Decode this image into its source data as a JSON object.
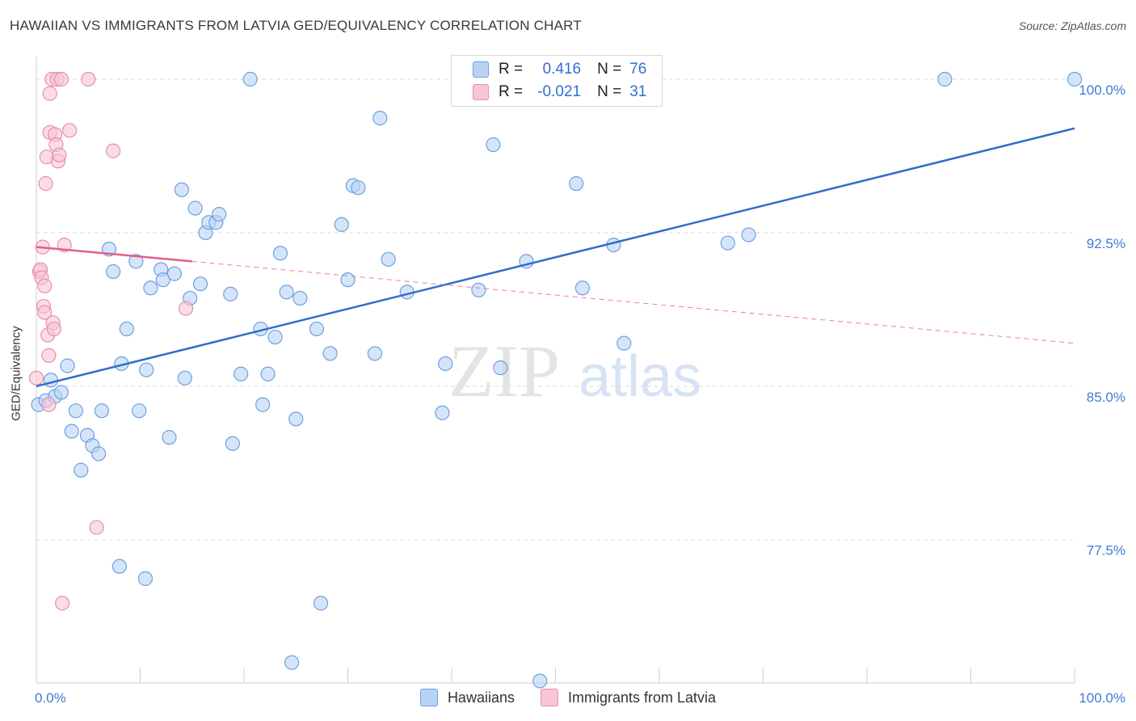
{
  "header": {
    "title": "HAWAIIAN VS IMMIGRANTS FROM LATVIA GED/EQUIVALENCY CORRELATION CHART",
    "source": "Source: ZipAtlas.com"
  },
  "watermark": {
    "zip": "ZIP",
    "atlas": "atlas"
  },
  "legend": {
    "r_label": "R =",
    "n_label": "N =",
    "series": [
      {
        "name": "Hawaiians",
        "r": "0.416",
        "n": "76",
        "fill": "#b9d3f5",
        "stroke": "#6f9fdf"
      },
      {
        "name": "Immigrants from Latvia",
        "r": "-0.021",
        "n": "31",
        "fill": "#f9c4d3",
        "stroke": "#e68fab"
      }
    ]
  },
  "chart_data": {
    "type": "scatter",
    "title": "HAWAIIAN VS IMMIGRANTS FROM LATVIA GED/EQUIVALENCY CORRELATION CHART",
    "xlabel": "",
    "ylabel": "GED/Equivalency",
    "xlim": [
      0,
      100
    ],
    "ylim": [
      70.5,
      101.5
    ],
    "x_tick_labels": [
      "0.0%",
      "100.0%"
    ],
    "y_ticks": [
      77.5,
      85.0,
      92.5,
      100.0
    ],
    "y_tick_labels": [
      "77.5%",
      "85.0%",
      "92.5%",
      "100.0%"
    ],
    "grid": true,
    "series": [
      {
        "name": "Hawaiians",
        "color": "#6f9fdf",
        "fill": "#b9d3f5",
        "line_color": "#2f6fcc",
        "trend": {
          "x0": 0,
          "y0": 85.0,
          "x1": 100,
          "y1": 97.6,
          "dashed": false
        },
        "points": [
          [
            0.2,
            84.1
          ],
          [
            0.9,
            84.3
          ],
          [
            1.4,
            85.3
          ],
          [
            1.8,
            84.5
          ],
          [
            2.4,
            84.7
          ],
          [
            3.0,
            86.0
          ],
          [
            3.4,
            82.8
          ],
          [
            3.8,
            83.8
          ],
          [
            4.3,
            80.9
          ],
          [
            4.9,
            82.6
          ],
          [
            5.4,
            82.1
          ],
          [
            6.0,
            81.7
          ],
          [
            6.3,
            83.8
          ],
          [
            7.0,
            91.7
          ],
          [
            7.4,
            90.6
          ],
          [
            8.2,
            86.1
          ],
          [
            8.7,
            87.8
          ],
          [
            9.6,
            91.1
          ],
          [
            9.9,
            83.8
          ],
          [
            10.6,
            85.8
          ],
          [
            11.0,
            89.8
          ],
          [
            12.0,
            90.7
          ],
          [
            12.2,
            90.2
          ],
          [
            12.8,
            82.5
          ],
          [
            13.3,
            90.5
          ],
          [
            14.0,
            94.6
          ],
          [
            14.3,
            85.4
          ],
          [
            14.8,
            89.3
          ],
          [
            15.3,
            93.7
          ],
          [
            15.8,
            90.0
          ],
          [
            16.3,
            92.5
          ],
          [
            16.6,
            93.0
          ],
          [
            17.3,
            93.0
          ],
          [
            17.6,
            93.4
          ],
          [
            18.7,
            89.5
          ],
          [
            18.9,
            82.2
          ],
          [
            19.7,
            85.6
          ],
          [
            20.6,
            100.0
          ],
          [
            21.6,
            87.8
          ],
          [
            21.8,
            84.1
          ],
          [
            22.3,
            85.6
          ],
          [
            23.0,
            87.4
          ],
          [
            23.5,
            91.5
          ],
          [
            24.1,
            89.6
          ],
          [
            24.6,
            71.5
          ],
          [
            25.0,
            83.4
          ],
          [
            25.4,
            89.3
          ],
          [
            27.0,
            87.8
          ],
          [
            27.4,
            74.4
          ],
          [
            28.3,
            86.6
          ],
          [
            29.4,
            92.9
          ],
          [
            30.0,
            90.2
          ],
          [
            30.5,
            94.8
          ],
          [
            31.0,
            94.7
          ],
          [
            32.6,
            86.6
          ],
          [
            33.1,
            98.1
          ],
          [
            33.9,
            91.2
          ],
          [
            35.7,
            89.6
          ],
          [
            39.1,
            83.7
          ],
          [
            39.4,
            86.1
          ],
          [
            42.6,
            89.7
          ],
          [
            44.7,
            85.9
          ],
          [
            47.2,
            91.1
          ],
          [
            48.5,
            70.6
          ],
          [
            49.2,
            100.0
          ],
          [
            52.0,
            94.9
          ],
          [
            52.6,
            89.8
          ],
          [
            55.6,
            91.9
          ],
          [
            56.6,
            87.1
          ],
          [
            66.6,
            92.0
          ],
          [
            68.6,
            92.4
          ],
          [
            87.5,
            100.0
          ],
          [
            100.0,
            100.0
          ],
          [
            8.0,
            76.2
          ],
          [
            10.5,
            75.6
          ],
          [
            44.0,
            96.8
          ]
        ]
      },
      {
        "name": "Immigrants from Latvia",
        "color": "#e68fab",
        "fill": "#f9c4d3",
        "line_color": "#e0608c",
        "trend": {
          "x0": 0,
          "y0": 91.8,
          "x1": 15,
          "y1": 91.1,
          "x_end": 100,
          "y_end": 87.1,
          "dashed_after": 15
        },
        "points": [
          [
            0.0,
            85.4
          ],
          [
            0.3,
            90.6
          ],
          [
            0.4,
            90.7
          ],
          [
            0.5,
            90.3
          ],
          [
            0.6,
            91.8
          ],
          [
            0.7,
            88.9
          ],
          [
            0.8,
            89.9
          ],
          [
            0.8,
            88.6
          ],
          [
            0.9,
            94.9
          ],
          [
            1.0,
            96.2
          ],
          [
            1.1,
            87.5
          ],
          [
            1.2,
            86.5
          ],
          [
            1.2,
            84.1
          ],
          [
            1.3,
            97.4
          ],
          [
            1.3,
            99.3
          ],
          [
            1.5,
            100.0
          ],
          [
            1.6,
            88.1
          ],
          [
            1.7,
            87.8
          ],
          [
            1.8,
            97.3
          ],
          [
            1.9,
            96.8
          ],
          [
            2.0,
            100.0
          ],
          [
            2.1,
            96.0
          ],
          [
            2.2,
            96.3
          ],
          [
            2.4,
            100.0
          ],
          [
            2.5,
            74.4
          ],
          [
            2.7,
            91.9
          ],
          [
            3.2,
            97.5
          ],
          [
            5.0,
            100.0
          ],
          [
            5.8,
            78.1
          ],
          [
            7.4,
            96.5
          ],
          [
            14.4,
            88.8
          ]
        ]
      }
    ]
  }
}
